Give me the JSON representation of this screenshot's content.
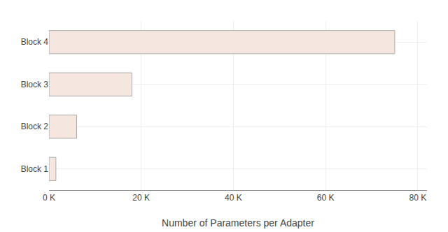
{
  "chart_data": {
    "type": "bar",
    "orientation": "horizontal",
    "categories": [
      "Block 1",
      "Block 2",
      "Block 3",
      "Block 4"
    ],
    "values": [
      1500,
      6000,
      18000,
      75000
    ],
    "color": "#f5e6e0",
    "xlabel": "Number of Parameters per Adapter",
    "xlim": [
      0,
      82000
    ],
    "xticks": [
      {
        "value": 0,
        "label": "0 K"
      },
      {
        "value": 20000,
        "label": "20 K"
      },
      {
        "value": 40000,
        "label": "40 K"
      },
      {
        "value": 60000,
        "label": "60 K"
      },
      {
        "value": 80000,
        "label": "80 K"
      }
    ],
    "grid": true
  }
}
